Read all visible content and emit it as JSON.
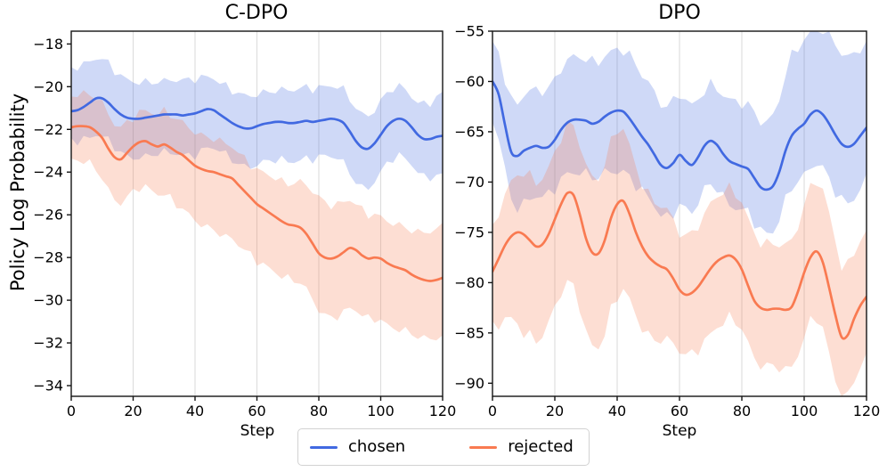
{
  "shared": {
    "ylabel": "Policy Log Probability"
  },
  "legend": {
    "items": [
      {
        "label": "chosen",
        "color": "#4169E1"
      },
      {
        "label": "rejected",
        "color": "#F97A51"
      }
    ],
    "border_color": "#d2d2d2"
  },
  "style": {
    "grid_color": "#dcdcdc",
    "spine_color": "#141414",
    "tick_color": "#141414",
    "band_alpha": 0.25,
    "line_width": 2.7
  },
  "chart_data": [
    {
      "type": "line",
      "title": "C-DPO",
      "xlabel": "Step",
      "ylabel": "Policy Log Probability",
      "xlim": [
        0,
        120
      ],
      "ylim": [
        -34.5,
        -17.4
      ],
      "xticks": [
        0,
        20,
        40,
        60,
        80,
        100,
        120
      ],
      "xtick_labels": [
        "0",
        "20",
        "40",
        "60",
        "80",
        "100",
        "120"
      ],
      "yticks": [
        -18,
        -20,
        -22,
        -24,
        -26,
        -28,
        -30,
        -32,
        -34
      ],
      "ytick_labels": [
        "−18",
        "−20",
        "−22",
        "−24",
        "−26",
        "−28",
        "−30",
        "−32",
        "−34"
      ],
      "grid": "vertical-only",
      "legend_position": "figure-bottom-center",
      "x_start": 0,
      "x_step": 2,
      "band_jitter": 0.28,
      "series": [
        {
          "name": "chosen",
          "color": "#4169E1",
          "values": [
            -21.15,
            -21.1,
            -20.95,
            -20.75,
            -20.55,
            -20.55,
            -20.75,
            -21.05,
            -21.3,
            -21.45,
            -21.5,
            -21.5,
            -21.45,
            -21.4,
            -21.35,
            -21.3,
            -21.3,
            -21.3,
            -21.35,
            -21.3,
            -21.25,
            -21.15,
            -21.05,
            -21.1,
            -21.3,
            -21.5,
            -21.7,
            -21.85,
            -21.95,
            -21.95,
            -21.85,
            -21.75,
            -21.7,
            -21.65,
            -21.65,
            -21.7,
            -21.7,
            -21.65,
            -21.6,
            -21.65,
            -21.6,
            -21.55,
            -21.5,
            -21.55,
            -21.7,
            -22.1,
            -22.55,
            -22.85,
            -22.9,
            -22.65,
            -22.25,
            -21.85,
            -21.6,
            -21.5,
            -21.6,
            -21.9,
            -22.25,
            -22.45,
            -22.45,
            -22.35,
            -22.3
          ],
          "band_upper_hw": [
            2.0,
            1.9,
            1.7,
            1.6,
            1.6,
            1.5,
            1.5,
            1.5,
            1.6,
            1.5,
            1.6,
            1.4,
            2.0
          ],
          "band_lower_hw": [
            1.3,
            1.8,
            1.8,
            1.8,
            1.9,
            1.7,
            1.8,
            1.8,
            1.7,
            1.9,
            1.8,
            1.7,
            1.9
          ]
        },
        {
          "name": "rejected",
          "color": "#F97A51",
          "values": [
            -21.9,
            -21.85,
            -21.85,
            -21.9,
            -22.1,
            -22.4,
            -22.9,
            -23.3,
            -23.4,
            -23.1,
            -22.8,
            -22.6,
            -22.55,
            -22.7,
            -22.8,
            -22.7,
            -22.85,
            -23.05,
            -23.2,
            -23.45,
            -23.7,
            -23.85,
            -23.95,
            -24.0,
            -24.1,
            -24.2,
            -24.3,
            -24.6,
            -24.9,
            -25.2,
            -25.5,
            -25.7,
            -25.9,
            -26.1,
            -26.3,
            -26.45,
            -26.5,
            -26.6,
            -26.9,
            -27.35,
            -27.8,
            -28.0,
            -28.05,
            -27.95,
            -27.75,
            -27.55,
            -27.65,
            -27.9,
            -28.05,
            -28.0,
            -28.05,
            -28.25,
            -28.4,
            -28.5,
            -28.6,
            -28.8,
            -28.95,
            -29.05,
            -29.1,
            -29.05,
            -28.95
          ],
          "band_upper_hw": [
            1.5,
            1.6,
            1.4,
            1.5,
            1.6,
            1.5,
            1.6,
            1.9,
            2.6,
            2.3,
            1.9,
            2.1,
            2.4
          ],
          "band_lower_hw": [
            1.5,
            1.9,
            2.1,
            2.3,
            2.6,
            2.8,
            2.7,
            2.5,
            2.7,
            2.8,
            2.9,
            2.8,
            2.7
          ]
        }
      ]
    },
    {
      "type": "line",
      "title": "DPO",
      "xlabel": "Step",
      "ylabel": "Policy Log Probability",
      "xlim": [
        0,
        120
      ],
      "ylim": [
        -91.3,
        -55.0
      ],
      "xticks": [
        0,
        20,
        40,
        60,
        80,
        100,
        120
      ],
      "xtick_labels": [
        "0",
        "20",
        "40",
        "60",
        "80",
        "100",
        "120"
      ],
      "yticks": [
        -55,
        -60,
        -65,
        -70,
        -75,
        -80,
        -85,
        -90
      ],
      "ytick_labels": [
        "−55",
        "−60",
        "−65",
        "−70",
        "−75",
        "−80",
        "−85",
        "−90"
      ],
      "grid": "vertical-only",
      "legend_position": "figure-bottom-center",
      "x_start": 0,
      "x_step": 2,
      "band_jitter": 0.85,
      "series": [
        {
          "name": "chosen",
          "color": "#4169E1",
          "values": [
            -60.0,
            -61.3,
            -64.3,
            -67.0,
            -67.4,
            -66.9,
            -66.6,
            -66.4,
            -66.6,
            -66.5,
            -65.8,
            -64.8,
            -64.1,
            -63.8,
            -63.8,
            -63.9,
            -64.2,
            -64.0,
            -63.5,
            -63.1,
            -62.9,
            -63.0,
            -63.7,
            -64.6,
            -65.5,
            -66.3,
            -67.3,
            -68.3,
            -68.6,
            -68.1,
            -67.3,
            -67.9,
            -68.3,
            -67.5,
            -66.4,
            -65.9,
            -66.3,
            -67.2,
            -67.9,
            -68.2,
            -68.45,
            -68.7,
            -69.6,
            -70.5,
            -70.75,
            -70.4,
            -69.0,
            -66.9,
            -65.4,
            -64.7,
            -64.2,
            -63.3,
            -62.9,
            -63.3,
            -64.2,
            -65.3,
            -66.2,
            -66.5,
            -66.2,
            -65.4,
            -64.6
          ],
          "band_upper_hw": [
            3.9,
            5.5,
            6.0,
            6.2,
            6.0,
            6.3,
            6.0,
            5.6,
            6.2,
            7.0,
            8.3,
            9.0,
            8.6
          ],
          "band_lower_hw": [
            4.0,
            5.2,
            4.8,
            5.3,
            6.0,
            5.3,
            4.8,
            4.4,
            4.2,
            4.6,
            5.2,
            5.6,
            5.2
          ]
        },
        {
          "name": "rejected",
          "color": "#F97A51",
          "values": [
            -78.9,
            -77.6,
            -76.3,
            -75.4,
            -75.0,
            -75.2,
            -75.8,
            -76.4,
            -76.2,
            -75.2,
            -73.7,
            -72.2,
            -71.1,
            -71.3,
            -73.2,
            -75.6,
            -77.0,
            -77.1,
            -75.8,
            -73.6,
            -72.2,
            -71.9,
            -73.2,
            -75.0,
            -76.4,
            -77.4,
            -78.0,
            -78.4,
            -78.7,
            -79.6,
            -80.7,
            -81.2,
            -81.0,
            -80.4,
            -79.5,
            -78.6,
            -77.9,
            -77.5,
            -77.3,
            -77.7,
            -78.7,
            -80.3,
            -81.8,
            -82.5,
            -82.7,
            -82.6,
            -82.6,
            -82.7,
            -82.4,
            -80.9,
            -79.0,
            -77.5,
            -76.9,
            -78.0,
            -80.5,
            -83.2,
            -85.4,
            -85.2,
            -83.6,
            -82.3,
            -81.4
          ],
          "band_upper_hw": [
            4.1,
            6.3,
            6.5,
            7.3,
            7.5,
            6.0,
            5.8,
            6.3,
            6.8,
            6.3,
            6.8,
            7.3,
            6.4
          ],
          "band_lower_hw": [
            5.4,
            10.0,
            8.5,
            9.5,
            9.0,
            8.0,
            6.0,
            6.5,
            6.0,
            5.5,
            6.5,
            6.5,
            6.0
          ]
        }
      ]
    }
  ]
}
